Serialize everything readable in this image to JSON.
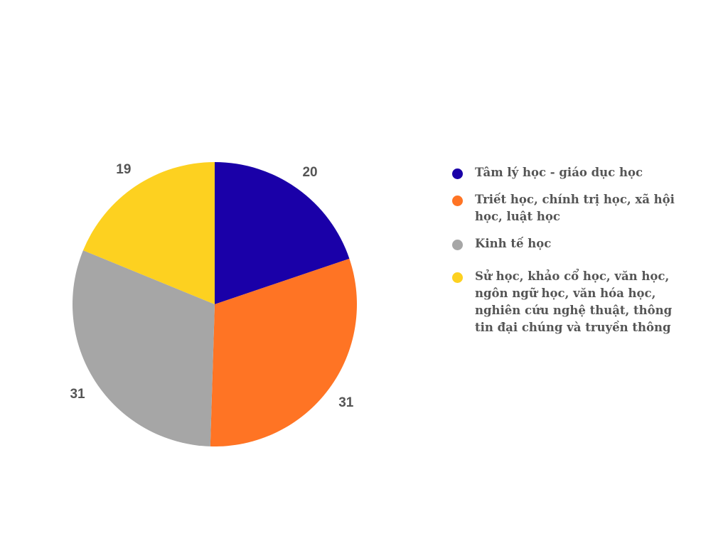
{
  "chart_data": {
    "type": "pie",
    "start_angle": "top, clockwise",
    "legend_placement": "right",
    "slices": [
      {
        "label": "Tâm lý học - giáo dục học",
        "value": 20,
        "color": "#1a00a8"
      },
      {
        "label": "Triết học, chính trị học, xã hội học, luật học",
        "value": 31,
        "color": "#ff7424"
      },
      {
        "label": "Kinh tế học",
        "value": 31,
        "color": "#a6a6a6"
      },
      {
        "label": "Sử học, khảo cổ học, văn học, ngôn ngữ học, văn hóa học, nghiên cứu nghệ thuật, thông tin đại chúng và truyền thông",
        "value": 19,
        "color": "#fdd120"
      }
    ]
  }
}
